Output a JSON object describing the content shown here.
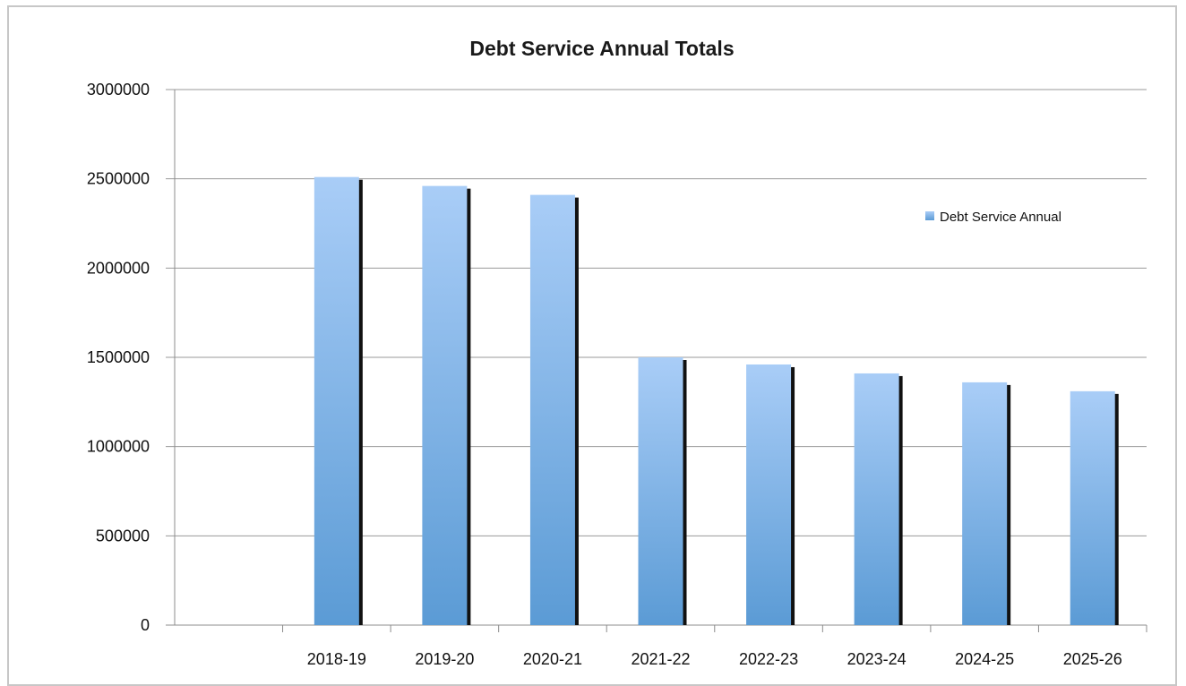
{
  "chart_data": {
    "type": "bar",
    "title": "Debt Service Annual Totals",
    "xlabel": "",
    "ylabel": "",
    "categories": [
      "",
      "2018-19",
      "2019-20",
      "2020-21",
      "2021-22",
      "2022-23",
      "2023-24",
      "2024-25",
      "2025-26"
    ],
    "series": [
      {
        "name": "Debt Service Annual",
        "values": [
          null,
          2510000,
          2460000,
          2410000,
          1500000,
          1460000,
          1410000,
          1360000,
          1310000
        ]
      }
    ],
    "ylim": [
      0,
      3000000
    ],
    "yticks": [
      "0",
      "500000",
      "1000000",
      "1500000",
      "2000000",
      "2500000",
      "3000000"
    ],
    "grid": true,
    "legend_position": "right",
    "colors": {
      "bar_top": "#a9cdf7",
      "bar_bottom": "#5b9bd5",
      "bar_shadow": "#111111",
      "grid": "#9a9a9a",
      "axis": "#8c8c8c"
    }
  }
}
